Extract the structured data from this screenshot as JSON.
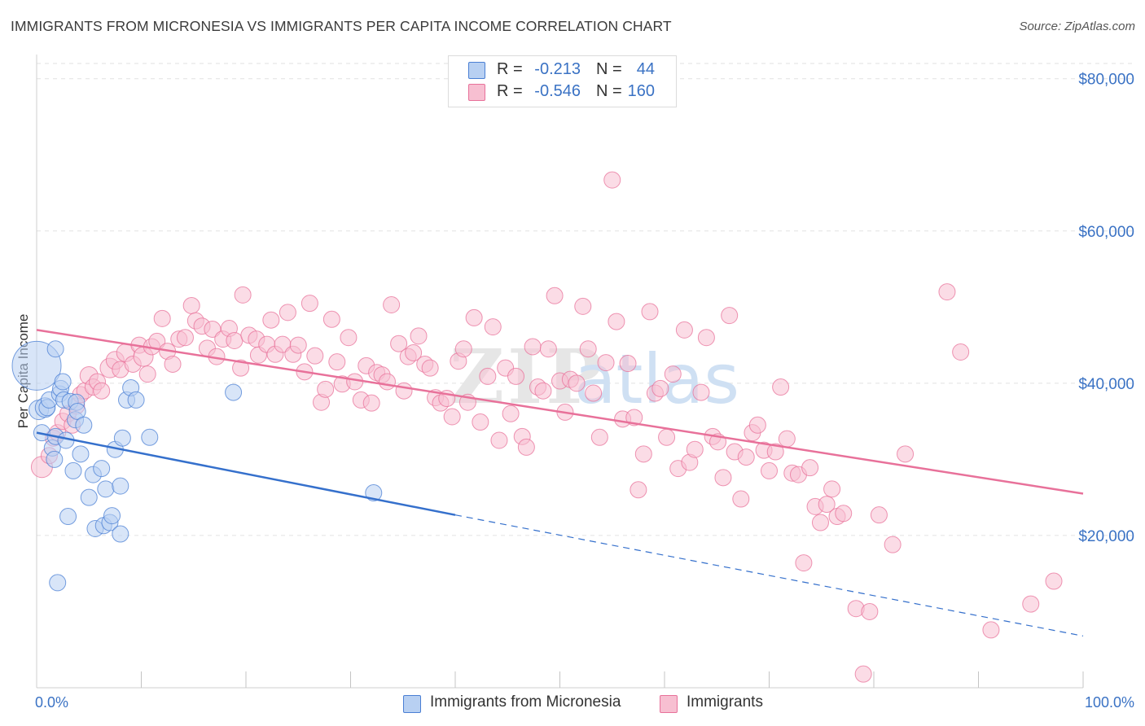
{
  "title": "IMMIGRANTS FROM MICRONESIA VS IMMIGRANTS PER CAPITA INCOME CORRELATION CHART",
  "source": "Source: ZipAtlas.com",
  "colors": {
    "blue": "#4a7fd4",
    "pink": "#e8719a",
    "blue_fill": "#b8d0f2",
    "pink_fill": "#f7bfd1",
    "tick": "#3a72c4"
  },
  "legend": {
    "rows": [
      {
        "r_label": "R =",
        "r_value": "-0.213",
        "n_label": "N =",
        "n_value": "44"
      },
      {
        "r_label": "R =",
        "r_value": "-0.546",
        "n_label": "N =",
        "n_value": "160"
      }
    ]
  },
  "bottom_legend": [
    "Immigrants from Micronesia",
    "Immigrants"
  ],
  "chart_data": {
    "type": "scatter",
    "xlabel": "",
    "ylabel": "Per Capita Income",
    "xlim": [
      0,
      100
    ],
    "ylim": [
      0,
      82000
    ],
    "x_tick_labels": [
      "0.0%",
      "100.0%"
    ],
    "y_ticks": [
      20000,
      40000,
      60000,
      80000
    ],
    "y_tick_labels": [
      "$20,000",
      "$40,000",
      "$60,000",
      "$80,000"
    ],
    "grid": true,
    "legend_position": "top-center",
    "series": [
      {
        "name": "Immigrants from Micronesia",
        "color": "#4a7fd4",
        "trend": {
          "x": [
            0,
            40,
            100
          ],
          "y": [
            33500,
            22700,
            6800
          ],
          "solid_until": 40
        },
        "points": [
          [
            0.0,
            42300,
            30
          ],
          [
            0.2,
            36500,
            12
          ],
          [
            0.5,
            33500,
            10
          ],
          [
            0.8,
            36800,
            12
          ],
          [
            1.0,
            36800,
            10
          ],
          [
            1.2,
            37800,
            10
          ],
          [
            1.5,
            31500,
            10
          ],
          [
            1.7,
            30000,
            10
          ],
          [
            1.8,
            33000,
            10
          ],
          [
            1.8,
            44500,
            10
          ],
          [
            2.0,
            13800,
            10
          ],
          [
            2.2,
            38600,
            10
          ],
          [
            2.3,
            39300,
            10
          ],
          [
            2.5,
            40200,
            10
          ],
          [
            2.6,
            37800,
            10
          ],
          [
            2.8,
            32500,
            10
          ],
          [
            3.0,
            22500,
            10
          ],
          [
            3.2,
            37600,
            10
          ],
          [
            3.5,
            28500,
            10
          ],
          [
            3.7,
            35200,
            10
          ],
          [
            3.8,
            37500,
            10
          ],
          [
            3.9,
            36300,
            10
          ],
          [
            4.2,
            30700,
            10
          ],
          [
            4.5,
            34500,
            10
          ],
          [
            5.0,
            25000,
            10
          ],
          [
            5.4,
            28000,
            10
          ],
          [
            5.6,
            20900,
            10
          ],
          [
            6.2,
            28800,
            10
          ],
          [
            6.4,
            21300,
            10
          ],
          [
            6.6,
            26100,
            10
          ],
          [
            7.0,
            21700,
            10
          ],
          [
            7.2,
            22600,
            10
          ],
          [
            7.5,
            31300,
            10
          ],
          [
            8.0,
            20200,
            10
          ],
          [
            8.0,
            26500,
            10
          ],
          [
            8.2,
            32800,
            10
          ],
          [
            8.6,
            37800,
            10
          ],
          [
            9.0,
            39400,
            10
          ],
          [
            9.5,
            37800,
            10
          ],
          [
            10.8,
            32900,
            10
          ],
          [
            18.8,
            38800,
            10
          ],
          [
            32.2,
            25600,
            10
          ]
        ]
      },
      {
        "name": "Immigrants",
        "color": "#e8719a",
        "trend": {
          "x": [
            0,
            100
          ],
          "y": [
            47000,
            25500
          ]
        },
        "points": [
          [
            0.5,
            29000,
            13
          ],
          [
            1.2,
            30500,
            10
          ],
          [
            1.6,
            32800,
            10
          ],
          [
            2.0,
            33500,
            10
          ],
          [
            2.5,
            35000,
            10
          ],
          [
            3.0,
            36000,
            10
          ],
          [
            3.4,
            34500,
            10
          ],
          [
            3.8,
            37000,
            10
          ],
          [
            4.2,
            38500,
            10
          ],
          [
            4.6,
            39000,
            10
          ],
          [
            5.0,
            41000,
            11
          ],
          [
            5.4,
            39500,
            10
          ],
          [
            5.8,
            40200,
            10
          ],
          [
            6.2,
            39000,
            10
          ],
          [
            7.0,
            42000,
            12
          ],
          [
            7.5,
            43000,
            11
          ],
          [
            8.0,
            41800,
            10
          ],
          [
            8.5,
            44000,
            11
          ],
          [
            9.2,
            42500,
            10
          ],
          [
            9.8,
            45000,
            10
          ],
          [
            10.2,
            43500,
            12
          ],
          [
            10.6,
            41200,
            10
          ],
          [
            11.0,
            44800,
            10
          ],
          [
            11.5,
            45500,
            10
          ],
          [
            12.0,
            48500,
            10
          ],
          [
            12.5,
            44200,
            10
          ],
          [
            13.0,
            42500,
            10
          ],
          [
            13.6,
            45800,
            10
          ],
          [
            14.2,
            46000,
            10
          ],
          [
            14.8,
            50200,
            10
          ],
          [
            15.2,
            48200,
            10
          ],
          [
            15.8,
            47500,
            10
          ],
          [
            16.3,
            44600,
            10
          ],
          [
            16.8,
            47100,
            10
          ],
          [
            17.2,
            43500,
            10
          ],
          [
            17.8,
            45800,
            10
          ],
          [
            18.4,
            47200,
            10
          ],
          [
            18.9,
            45600,
            10
          ],
          [
            19.5,
            42000,
            10
          ],
          [
            19.7,
            51600,
            10
          ],
          [
            20.3,
            46300,
            10
          ],
          [
            21.0,
            45800,
            10
          ],
          [
            21.2,
            43700,
            10
          ],
          [
            22.0,
            45100,
            10
          ],
          [
            22.4,
            48300,
            10
          ],
          [
            22.8,
            43800,
            10
          ],
          [
            23.5,
            45100,
            10
          ],
          [
            24.0,
            49300,
            10
          ],
          [
            24.5,
            43800,
            10
          ],
          [
            25.0,
            45000,
            10
          ],
          [
            25.6,
            41500,
            10
          ],
          [
            26.1,
            50500,
            10
          ],
          [
            26.6,
            43600,
            10
          ],
          [
            27.2,
            37500,
            10
          ],
          [
            27.6,
            39200,
            10
          ],
          [
            28.2,
            48400,
            10
          ],
          [
            28.7,
            42800,
            10
          ],
          [
            29.2,
            39900,
            10
          ],
          [
            29.8,
            46000,
            10
          ],
          [
            30.4,
            40200,
            10
          ],
          [
            31.0,
            37800,
            10
          ],
          [
            31.5,
            42300,
            10
          ],
          [
            32.0,
            37400,
            10
          ],
          [
            32.5,
            41400,
            10
          ],
          [
            33.0,
            41100,
            10
          ],
          [
            33.5,
            40200,
            10
          ],
          [
            33.9,
            50300,
            10
          ],
          [
            34.6,
            45200,
            10
          ],
          [
            35.1,
            39000,
            10
          ],
          [
            35.5,
            43500,
            10
          ],
          [
            36.0,
            44000,
            10
          ],
          [
            36.5,
            46200,
            10
          ],
          [
            37.1,
            42500,
            10
          ],
          [
            37.6,
            42000,
            10
          ],
          [
            38.1,
            38100,
            10
          ],
          [
            38.6,
            37400,
            10
          ],
          [
            39.2,
            38000,
            10
          ],
          [
            39.7,
            35600,
            10
          ],
          [
            40.3,
            42900,
            10
          ],
          [
            40.8,
            44500,
            10
          ],
          [
            41.2,
            37500,
            10
          ],
          [
            41.8,
            48600,
            10
          ],
          [
            42.4,
            34900,
            10
          ],
          [
            43.1,
            40900,
            10
          ],
          [
            43.6,
            47400,
            10
          ],
          [
            44.2,
            32500,
            10
          ],
          [
            44.8,
            42000,
            10
          ],
          [
            45.3,
            36000,
            10
          ],
          [
            45.8,
            40900,
            10
          ],
          [
            46.4,
            33000,
            10
          ],
          [
            46.8,
            31600,
            10
          ],
          [
            47.4,
            44800,
            10
          ],
          [
            47.9,
            39500,
            10
          ],
          [
            48.4,
            39000,
            10
          ],
          [
            48.9,
            44500,
            10
          ],
          [
            49.5,
            51500,
            10
          ],
          [
            50.0,
            40300,
            10
          ],
          [
            50.5,
            36200,
            10
          ],
          [
            51.0,
            40500,
            10
          ],
          [
            51.6,
            40000,
            10
          ],
          [
            52.2,
            50100,
            10
          ],
          [
            52.7,
            44500,
            10
          ],
          [
            53.2,
            38700,
            10
          ],
          [
            53.8,
            32900,
            10
          ],
          [
            54.4,
            42700,
            10
          ],
          [
            55.0,
            66700,
            10
          ],
          [
            55.4,
            48100,
            10
          ],
          [
            56.0,
            35300,
            10
          ],
          [
            56.5,
            42600,
            10
          ],
          [
            57.1,
            35500,
            10
          ],
          [
            57.5,
            26000,
            10
          ],
          [
            58.0,
            30700,
            10
          ],
          [
            58.6,
            49400,
            10
          ],
          [
            59.1,
            38700,
            10
          ],
          [
            59.6,
            39300,
            10
          ],
          [
            60.2,
            32900,
            10
          ],
          [
            60.8,
            41200,
            10
          ],
          [
            61.3,
            28800,
            10
          ],
          [
            61.9,
            47000,
            10
          ],
          [
            62.4,
            29600,
            10
          ],
          [
            62.9,
            31300,
            10
          ],
          [
            63.5,
            38800,
            10
          ],
          [
            64.0,
            46000,
            10
          ],
          [
            64.6,
            33000,
            10
          ],
          [
            65.1,
            32300,
            10
          ],
          [
            65.6,
            27600,
            10
          ],
          [
            66.2,
            48900,
            10
          ],
          [
            66.7,
            31000,
            10
          ],
          [
            67.3,
            24800,
            10
          ],
          [
            67.8,
            30300,
            10
          ],
          [
            68.4,
            33500,
            10
          ],
          [
            68.9,
            34500,
            10
          ],
          [
            69.5,
            31200,
            10
          ],
          [
            70.0,
            28500,
            10
          ],
          [
            70.6,
            31000,
            10
          ],
          [
            71.1,
            39500,
            10
          ],
          [
            71.7,
            32700,
            10
          ],
          [
            72.2,
            28200,
            10
          ],
          [
            72.8,
            28000,
            10
          ],
          [
            73.3,
            16400,
            10
          ],
          [
            73.9,
            28900,
            10
          ],
          [
            74.4,
            23800,
            10
          ],
          [
            74.9,
            21700,
            10
          ],
          [
            75.5,
            24100,
            10
          ],
          [
            76.0,
            26100,
            10
          ],
          [
            76.5,
            22500,
            10
          ],
          [
            77.1,
            22900,
            10
          ],
          [
            78.3,
            10400,
            10
          ],
          [
            79.0,
            1800,
            10
          ],
          [
            79.6,
            10000,
            10
          ],
          [
            80.5,
            22700,
            10
          ],
          [
            81.8,
            18800,
            10
          ],
          [
            83.0,
            30700,
            10
          ],
          [
            87.0,
            52000,
            10
          ],
          [
            88.3,
            44100,
            10
          ],
          [
            91.2,
            7600,
            10
          ],
          [
            95.0,
            11000,
            10
          ],
          [
            97.2,
            14000,
            10
          ]
        ]
      }
    ]
  }
}
